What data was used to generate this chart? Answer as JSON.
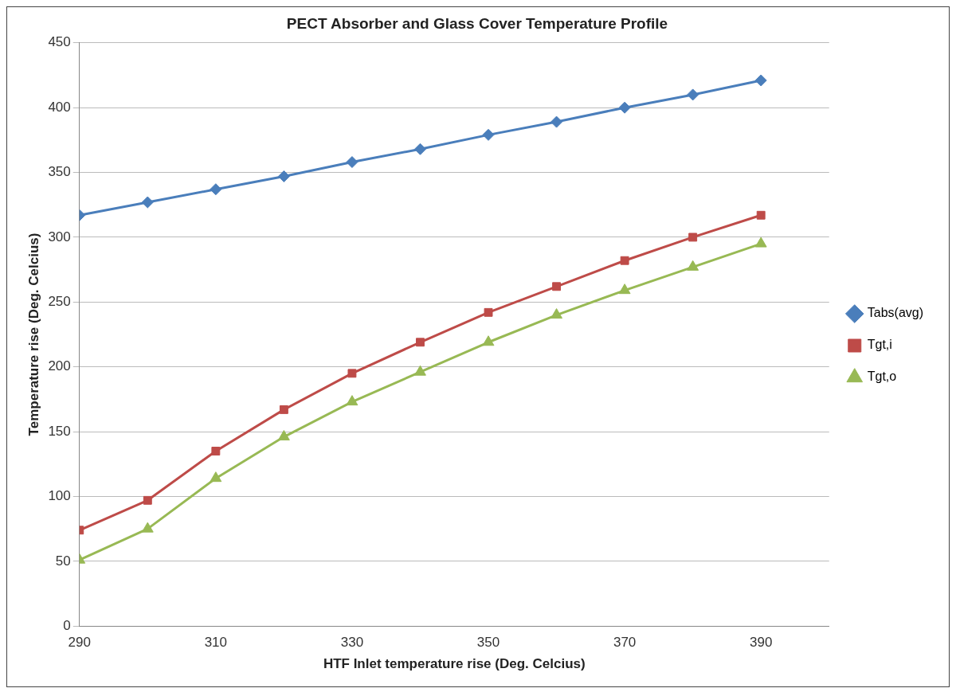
{
  "chart_data": {
    "type": "line",
    "title": "PECT Absorber and Glass Cover Temperature Profile",
    "xlabel": "HTF Inlet temperature rise (Deg. Celcius)",
    "ylabel": "Temperature rise (Deg. Celcius)",
    "x": [
      290,
      300,
      310,
      320,
      330,
      340,
      350,
      360,
      370,
      380,
      390
    ],
    "xlim": [
      290,
      400
    ],
    "xticks": [
      290,
      310,
      330,
      350,
      370,
      390
    ],
    "ylim": [
      0,
      450
    ],
    "yticks": [
      0,
      50,
      100,
      150,
      200,
      250,
      300,
      350,
      400,
      450
    ],
    "grid": "y",
    "legend": "right",
    "line_style": "solid",
    "series": [
      {
        "name": "Tabs(avg)",
        "color": "#4a7ebb",
        "marker": "diamond",
        "values": [
          317,
          327,
          337,
          347,
          358,
          368,
          379,
          389,
          400,
          410,
          421
        ]
      },
      {
        "name": "Tgt,i",
        "color": "#be4b48",
        "marker": "square",
        "values": [
          74,
          97,
          135,
          167,
          195,
          219,
          242,
          262,
          282,
          300,
          317
        ]
      },
      {
        "name": "Tgt,o",
        "color": "#98b954",
        "marker": "triangle",
        "values": [
          51,
          75,
          114,
          146,
          173,
          196,
          219,
          240,
          259,
          277,
          295
        ]
      }
    ]
  }
}
